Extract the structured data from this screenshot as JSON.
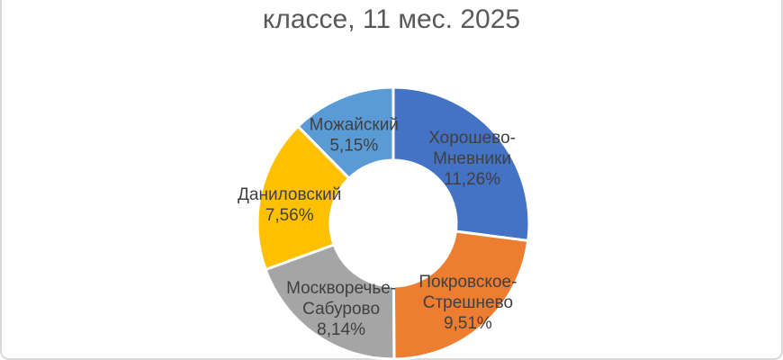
{
  "chart_data": {
    "type": "pie",
    "subtype": "donut",
    "title": "классе, 11 мес. 2025",
    "unit": "%",
    "legend": "none",
    "labels_position": "inside",
    "categories": [
      "Хорошево-Мневники",
      "Покровское-Стрешнево",
      "Москворечье-Сабурово",
      "Даниловский",
      "Можайский"
    ],
    "values": [
      11.26,
      9.51,
      8.14,
      7.56,
      5.15
    ],
    "value_labels": [
      "11,26%",
      "9,51%",
      "8,14%",
      "7,56%",
      "5,15%"
    ],
    "colors": [
      "#4472C4",
      "#ED7D31",
      "#A5A5A5",
      "#FFC000",
      "#5B9BD5"
    ],
    "slices": [
      {
        "name": "Хорошево-Мневники",
        "value": 11.26,
        "pct_label": "11,26%",
        "color": "#4472C4",
        "label_lines": [
          "Хорошево-",
          "Мневники",
          "11,26%"
        ]
      },
      {
        "name": "Покровское-Стрешнево",
        "value": 9.51,
        "pct_label": "9,51%",
        "color": "#ED7D31",
        "label_lines": [
          "Покровское-",
          "Стрешнево",
          "9,51%"
        ]
      },
      {
        "name": "Москворечье-Сабурово",
        "value": 8.14,
        "pct_label": "8,14%",
        "color": "#A5A5A5",
        "label_lines": [
          "Москворечье-",
          "Сабурово",
          "8,14%"
        ]
      },
      {
        "name": "Даниловский",
        "value": 7.56,
        "pct_label": "7,56%",
        "color": "#FFC000",
        "label_lines": [
          "Даниловский",
          "7,56%"
        ]
      },
      {
        "name": "Можайский",
        "value": 5.15,
        "pct_label": "5,15%",
        "color": "#5B9BD5",
        "label_lines": [
          "Можайский",
          "5,15%"
        ]
      }
    ],
    "style": {
      "title_color": "#595959",
      "label_color": "#404040",
      "slice_gap_color": "#FFFFFF",
      "frame_border_color": "#D9D9D9",
      "background": "#FFFFFF"
    }
  }
}
